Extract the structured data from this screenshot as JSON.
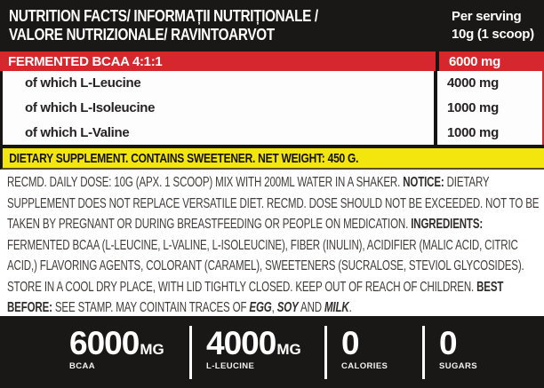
{
  "header": {
    "title_line1": "NUTRITION FACTS/ INFORMAȚII NUTRIȚIONALE /",
    "title_line2": "VALORE NUTRIZIONALE/ RAVINTOARVOT",
    "serving_line1": "Per serving",
    "serving_line2": "10g (1 scoop)"
  },
  "table": {
    "main_row": {
      "label": "FERMENTED BCAA 4:1:1",
      "value": "6000 mg"
    },
    "rows": [
      {
        "label": "of which L-Leucine",
        "value": "4000 mg"
      },
      {
        "label": "of which L-Isoleucine",
        "value": "1000 mg"
      },
      {
        "label": "of which L-Valine",
        "value": "1000 mg"
      }
    ]
  },
  "banner": {
    "text": "DIETARY SUPPLEMENT. CONTAINS SWEETENER. NET WEIGHT: 450 G."
  },
  "description": {
    "segments": [
      {
        "style": "normal",
        "text": "RECMD. DAILY DOSE: 10G (APX. 1 SCOOP) MIX WITH 200ML WATER IN A SHAKER. "
      },
      {
        "style": "bold",
        "text": "NOTICE:"
      },
      {
        "style": "normal",
        "text": " DIETARY SUPPLEMENT DOES NOT REPLACE VERSATILE DIET. RECMD. DOSE SHOULD NOT BE EXCEEDED. NOT TO BE TAKEN BY PREGNANT OR DURING BREASTFEEDING OR PEOPLE ON MEDICATION. "
      },
      {
        "style": "bold",
        "text": "INGREDIENTS:"
      },
      {
        "style": "normal",
        "text": " FERMENTED BCAA (L-LEUCINE, L-VALINE, L-ISOLEUCINE), FIBER (INULIN), ACIDIFIER (MALIC ACID, CITRIC ACID,) FLAVORING AGENTS, COLORANT (CARAMEL), SWEETENERS (SUCRALOSE, STEVIOL GLYCOSIDES). STORE IN A COOL DRY PLACE, WITH LID TIGHTLY CLOSED. KEEP OUT OF REACH OF CHILDREN. "
      },
      {
        "style": "bold",
        "text": "BEST BEFORE:"
      },
      {
        "style": "normal",
        "text": " SEE STAMP. MAY COINTAIN TRACES OF "
      },
      {
        "style": "bold-italic",
        "text": "EGG"
      },
      {
        "style": "normal",
        "text": ", "
      },
      {
        "style": "bold-italic",
        "text": "SOY"
      },
      {
        "style": "normal",
        "text": " AND "
      },
      {
        "style": "bold-italic",
        "text": "MILK"
      },
      {
        "style": "normal",
        "text": "."
      }
    ]
  },
  "footer": {
    "stats": [
      {
        "value": "6000",
        "unit": "MG",
        "label": "BCAA"
      },
      {
        "value": "4000",
        "unit": "MG",
        "label": "L-LEUCINE"
      },
      {
        "value": "0",
        "unit": "",
        "label": "CALORIES"
      },
      {
        "value": "0",
        "unit": "",
        "label": "SUGARS"
      }
    ]
  },
  "colors": {
    "red": "#d7272e",
    "yellow": "#f3e50e",
    "black": "#1a1816",
    "body_text": "#413c3a"
  }
}
